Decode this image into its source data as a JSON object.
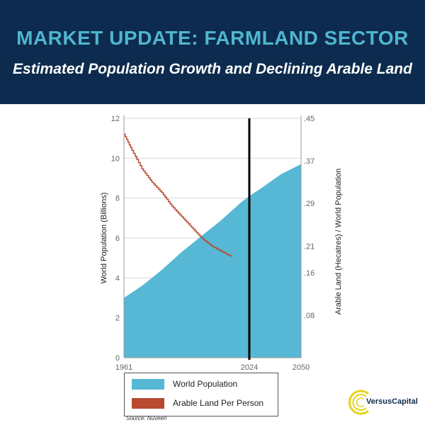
{
  "header": {
    "title": "MARKET UPDATE: FARMLAND SECTOR",
    "subtitle": "Estimated Population Growth and Declining Arable Land"
  },
  "chart_data": {
    "type": "area",
    "x_ticks": [
      "1961",
      "2024",
      "2050"
    ],
    "xlim": [
      1961,
      2050
    ],
    "marker_year": 2024,
    "ylabel_left": "World Population (Billions)",
    "ylim_left": [
      0,
      12
    ],
    "yticks_left": [
      "0",
      "2",
      "4",
      "6",
      "8",
      "10",
      "12"
    ],
    "ylabel_right": "Arable Land (Hecatres) / World Population",
    "ylim_right": [
      0,
      0.45
    ],
    "yticks_right": [
      ".08",
      ".16",
      ".21",
      ".29",
      ".37",
      ".45"
    ],
    "yticks_right_values": [
      0.08,
      0.16,
      0.21,
      0.29,
      0.37,
      0.45
    ],
    "grid": true,
    "series": [
      {
        "name": "World Population",
        "kind": "area",
        "color": "#56b8d4",
        "x": [
          1961,
          1970,
          1980,
          1990,
          2000,
          2010,
          2020,
          2024,
          2030,
          2040,
          2050
        ],
        "y": [
          3.0,
          3.6,
          4.4,
          5.3,
          6.1,
          6.9,
          7.8,
          8.1,
          8.5,
          9.2,
          9.7
        ]
      },
      {
        "name": "Arable Land Per Person",
        "kind": "line",
        "color": "#b84a32",
        "x": [
          1961,
          1965,
          1970,
          1975,
          1980,
          1985,
          1990,
          1995,
          2000,
          2005,
          2010,
          2015
        ],
        "y": [
          0.42,
          0.39,
          0.355,
          0.33,
          0.31,
          0.285,
          0.265,
          0.245,
          0.225,
          0.21,
          0.2,
          0.19
        ]
      }
    ],
    "legend_position": "bottom"
  },
  "source": "Source: Nuveen",
  "logo": {
    "text": "VersusCapital",
    "accent_color": "#e6d21c",
    "text_color": "#0d2b4e"
  }
}
